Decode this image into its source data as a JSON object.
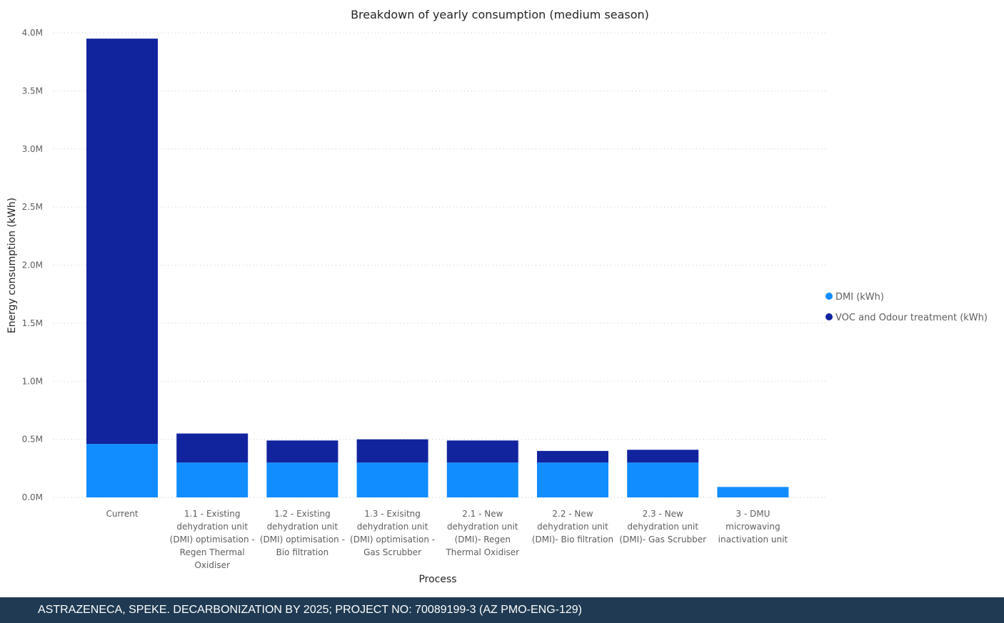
{
  "chart_data": {
    "type": "bar",
    "stacked": true,
    "title": "Breakdown of yearly consumption (medium season)",
    "xlabel": "Process",
    "ylabel": "Energy consumption (kWh)",
    "ylim": [
      0,
      4000000
    ],
    "yticks": [
      {
        "value": 0,
        "label": "0.0M"
      },
      {
        "value": 500000,
        "label": "0.5M"
      },
      {
        "value": 1000000,
        "label": "1.0M"
      },
      {
        "value": 1500000,
        "label": "1.5M"
      },
      {
        "value": 2000000,
        "label": "2.0M"
      },
      {
        "value": 2500000,
        "label": "2.5M"
      },
      {
        "value": 3000000,
        "label": "3.0M"
      },
      {
        "value": 3500000,
        "label": "3.5M"
      },
      {
        "value": 4000000,
        "label": "4.0M"
      }
    ],
    "grid": true,
    "legend_position": "right",
    "categories": [
      "Current",
      "1.1 - Existing dehydration unit (DMI) optimisation - Regen Thermal Oxidiser",
      "1.2 - Existing dehydration unit (DMI) optimisation - Bio filtration",
      "1.3 - Exisitng dehydration unit (DMI) optimisation - Gas Scrubber",
      "2.1 - New dehydration unit (DMI)- Regen Thermal Oxidiser",
      "2.2 - New dehydration unit (DMI)- Bio filtration",
      "2.3 - New dehydration unit (DMI)- Gas Scrubber",
      "3 - DMU microwaving inactivation unit"
    ],
    "category_lines": [
      [
        "Current"
      ],
      [
        "1.1 - Existing",
        "dehydration unit",
        "(DMI) optimisation -",
        "Regen Thermal",
        "Oxidiser"
      ],
      [
        "1.2 - Existing",
        "dehydration unit",
        "(DMI) optimisation -",
        "Bio filtration"
      ],
      [
        "1.3 - Exisitng",
        "dehydration unit",
        "(DMI) optimisation -",
        "Gas Scrubber"
      ],
      [
        "2.1 - New",
        "dehydration unit",
        "(DMI)- Regen",
        "Thermal Oxidiser"
      ],
      [
        "2.2 - New",
        "dehydration unit",
        "(DMI)- Bio filtration"
      ],
      [
        "2.3 - New",
        "dehydration unit",
        "(DMI)- Gas Scrubber"
      ],
      [
        "3 - DMU",
        "microwaving",
        "inactivation unit"
      ]
    ],
    "series": [
      {
        "name": "DMI (kWh)",
        "color": "#118dff",
        "values": [
          460000,
          300000,
          300000,
          300000,
          300000,
          300000,
          300000,
          90000
        ]
      },
      {
        "name": "VOC and Odour treatment (kWh)",
        "color": "#12239e",
        "values": [
          3490000,
          250000,
          190000,
          200000,
          190000,
          100000,
          110000,
          0
        ]
      }
    ]
  },
  "footer": {
    "text": "ASTRAZENECA, SPEKE. DECARBONIZATION BY 2025; PROJECT NO: 70089199-3 (AZ PMO-ENG-129)"
  }
}
